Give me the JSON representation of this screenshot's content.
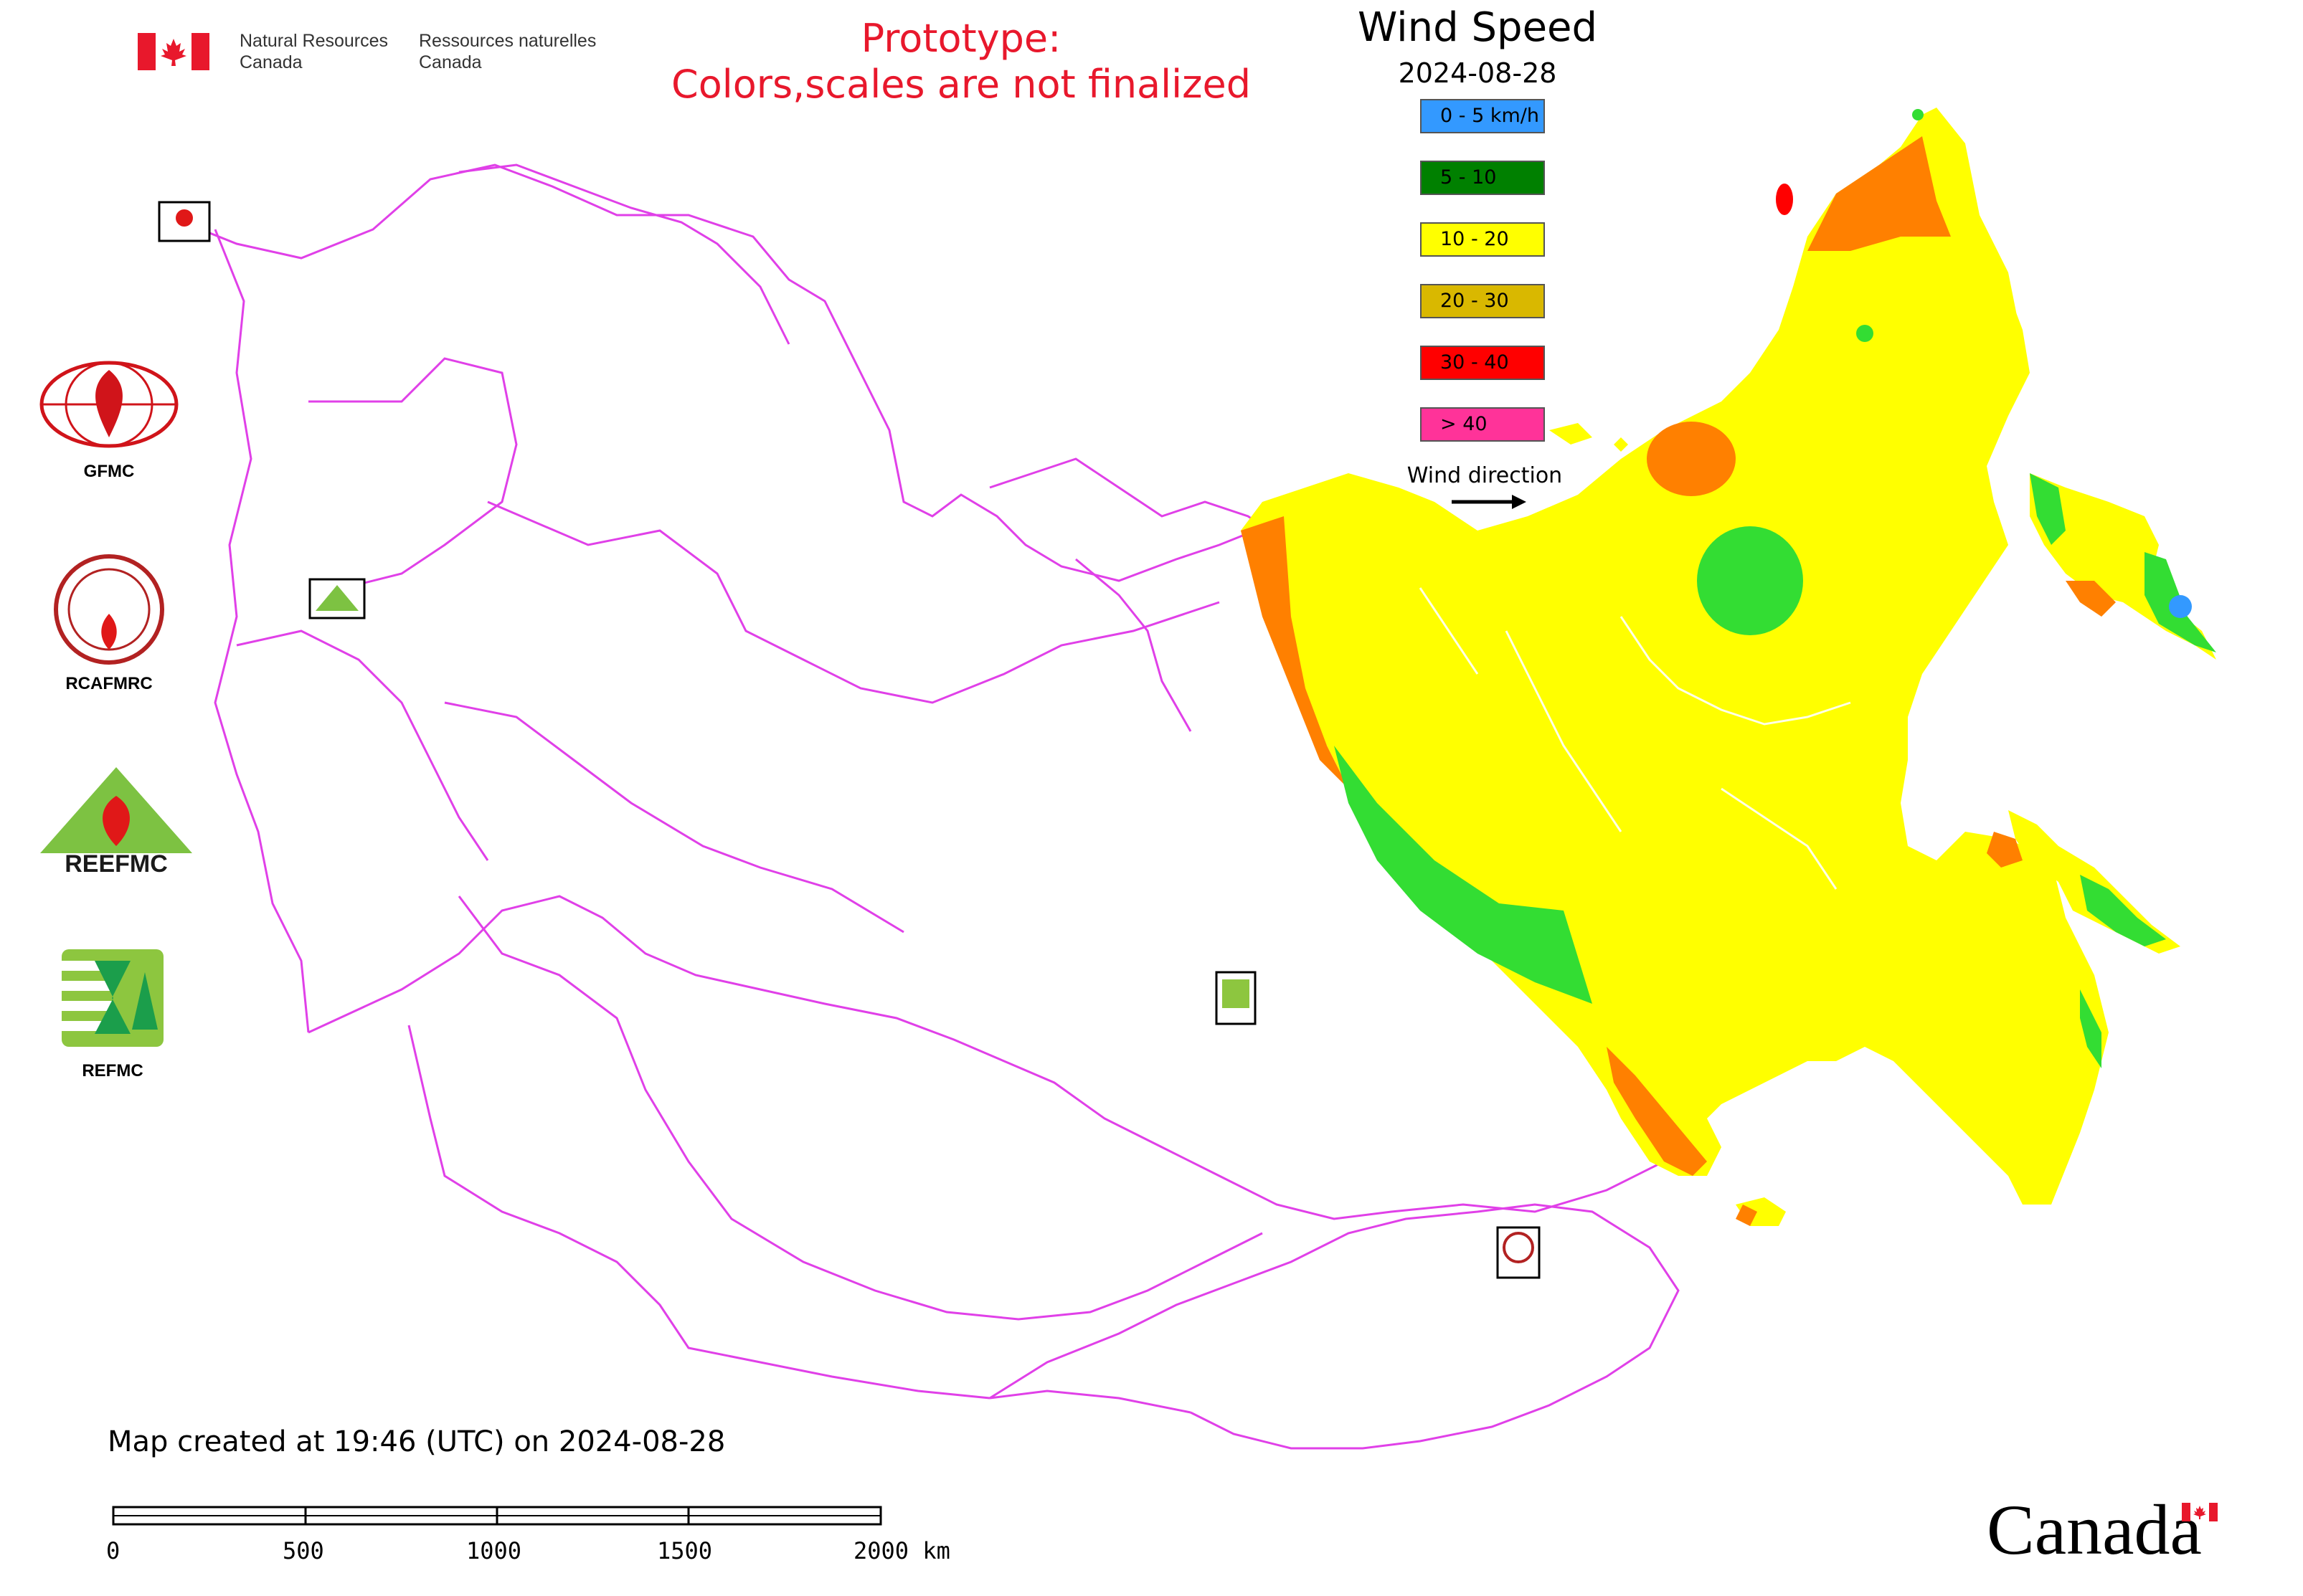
{
  "header": {
    "agency_en_line1": "Natural Resources",
    "agency_en_line2": "Canada",
    "agency_fr_line1": "Ressources naturelles",
    "agency_fr_line2": "Canada",
    "prototype_line1": "Prototype:",
    "prototype_line2": "Colors,scales are not finalized"
  },
  "legend": {
    "title": "Wind Speed",
    "date": "2024-08-28",
    "items": [
      {
        "label": "0 - 5 km/h",
        "color": "#3399ff"
      },
      {
        "label": "5 - 10",
        "color": "#008000"
      },
      {
        "label": "10 - 20",
        "color": "#ffff00"
      },
      {
        "label": "20 - 30",
        "color": "#d9b800"
      },
      {
        "label": "30 - 40",
        "color": "#ff0000"
      },
      {
        "label": "> 40",
        "color": "#ff3399"
      }
    ],
    "wind_direction_label": "Wind direction"
  },
  "logos": [
    {
      "label": "GFMC"
    },
    {
      "label": "RCAFMRC"
    },
    {
      "label": "REEFMC"
    },
    {
      "label": "REFMC"
    }
  ],
  "footer": {
    "created_text": "Map created at 19:46 (UTC) on 2024-08-28",
    "scale_labels": [
      "0",
      "500",
      "1000",
      "1500",
      "2000 km"
    ],
    "wordmark": "Canada"
  },
  "colors": {
    "border": "#e040e8",
    "zone_yellow": "#ffff00",
    "zone_light_green": "#33dd33",
    "zone_orange": "#ff8000",
    "prototype_text": "#e8182c"
  }
}
